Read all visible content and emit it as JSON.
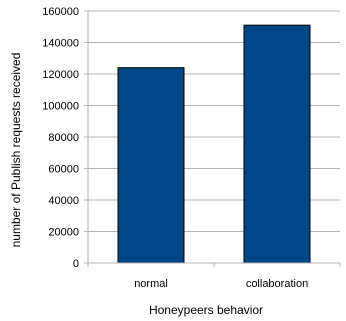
{
  "chart_data": {
    "type": "bar",
    "categories": [
      "normal",
      "collaboration"
    ],
    "values": [
      124000,
      151000
    ],
    "title": "",
    "xlabel": "Honeypeers behavior",
    "ylabel": "number of Publish requests received",
    "ylim": [
      0,
      160000
    ],
    "yticks": [
      "0",
      "20000",
      "40000",
      "60000",
      "80000",
      "100000",
      "120000",
      "140000",
      "160000"
    ],
    "ytick_values": [
      0,
      20000,
      40000,
      60000,
      80000,
      100000,
      120000,
      140000,
      160000
    ],
    "grid": true,
    "legend": "none",
    "bar_color": "#004586"
  }
}
